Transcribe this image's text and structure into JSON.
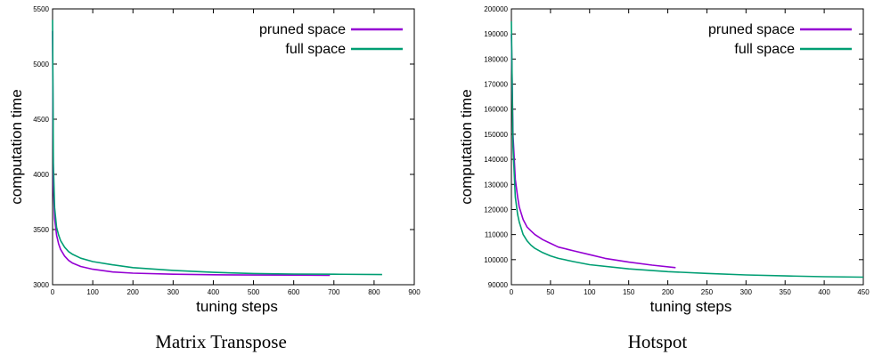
{
  "chart_data": [
    {
      "type": "line",
      "title": "",
      "caption": "Matrix Transpose",
      "xlabel": "tuning steps",
      "ylabel": "computation time",
      "xlim": [
        0,
        900
      ],
      "ylim": [
        3000,
        5500
      ],
      "xticks": [
        0,
        100,
        200,
        300,
        400,
        500,
        600,
        700,
        800,
        900
      ],
      "yticks": [
        3000,
        3500,
        4000,
        4500,
        5000,
        5500
      ],
      "legend": "top-right",
      "grid": false,
      "series": [
        {
          "name": "pruned space",
          "color": "#9400d3",
          "x": [
            0,
            2,
            5,
            10,
            15,
            20,
            30,
            40,
            50,
            70,
            100,
            150,
            200,
            300,
            400,
            500,
            600,
            690
          ],
          "y": [
            5300,
            3900,
            3600,
            3450,
            3370,
            3320,
            3260,
            3220,
            3195,
            3165,
            3140,
            3115,
            3105,
            3095,
            3090,
            3088,
            3087,
            3085
          ]
        },
        {
          "name": "full space",
          "color": "#009e73",
          "x": [
            0,
            2,
            5,
            10,
            15,
            20,
            30,
            40,
            50,
            70,
            100,
            150,
            200,
            300,
            400,
            500,
            600,
            700,
            820
          ],
          "y": [
            5400,
            4100,
            3700,
            3520,
            3450,
            3400,
            3340,
            3300,
            3275,
            3240,
            3210,
            3180,
            3155,
            3130,
            3112,
            3102,
            3097,
            3095,
            3092
          ]
        }
      ]
    },
    {
      "type": "line",
      "title": "",
      "caption": "Hotspot",
      "xlabel": "tuning steps",
      "ylabel": "computation time",
      "xlim": [
        0,
        450
      ],
      "ylim": [
        90000,
        200000
      ],
      "xticks": [
        0,
        50,
        100,
        150,
        200,
        250,
        300,
        350,
        400,
        450
      ],
      "yticks": [
        90000,
        100000,
        110000,
        120000,
        130000,
        140000,
        150000,
        160000,
        170000,
        180000,
        190000,
        200000
      ],
      "legend": "top-right",
      "grid": false,
      "series": [
        {
          "name": "pruned space",
          "color": "#9400d3",
          "x": [
            0,
            2,
            5,
            8,
            10,
            15,
            20,
            25,
            30,
            40,
            50,
            60,
            80,
            100,
            120,
            150,
            180,
            210
          ],
          "y": [
            190000,
            150000,
            132000,
            125000,
            121000,
            116000,
            113000,
            111500,
            110000,
            108000,
            106500,
            105000,
            103500,
            102000,
            100500,
            99000,
            97800,
            96800
          ]
        },
        {
          "name": "full space",
          "color": "#009e73",
          "x": [
            0,
            2,
            5,
            8,
            10,
            15,
            20,
            25,
            30,
            40,
            50,
            60,
            80,
            100,
            150,
            200,
            250,
            300,
            350,
            400,
            450
          ],
          "y": [
            195000,
            145000,
            125000,
            118000,
            115000,
            110000,
            107500,
            105800,
            104500,
            102800,
            101500,
            100500,
            99200,
            98000,
            96300,
            95200,
            94500,
            93900,
            93500,
            93200,
            93000
          ]
        }
      ]
    }
  ]
}
